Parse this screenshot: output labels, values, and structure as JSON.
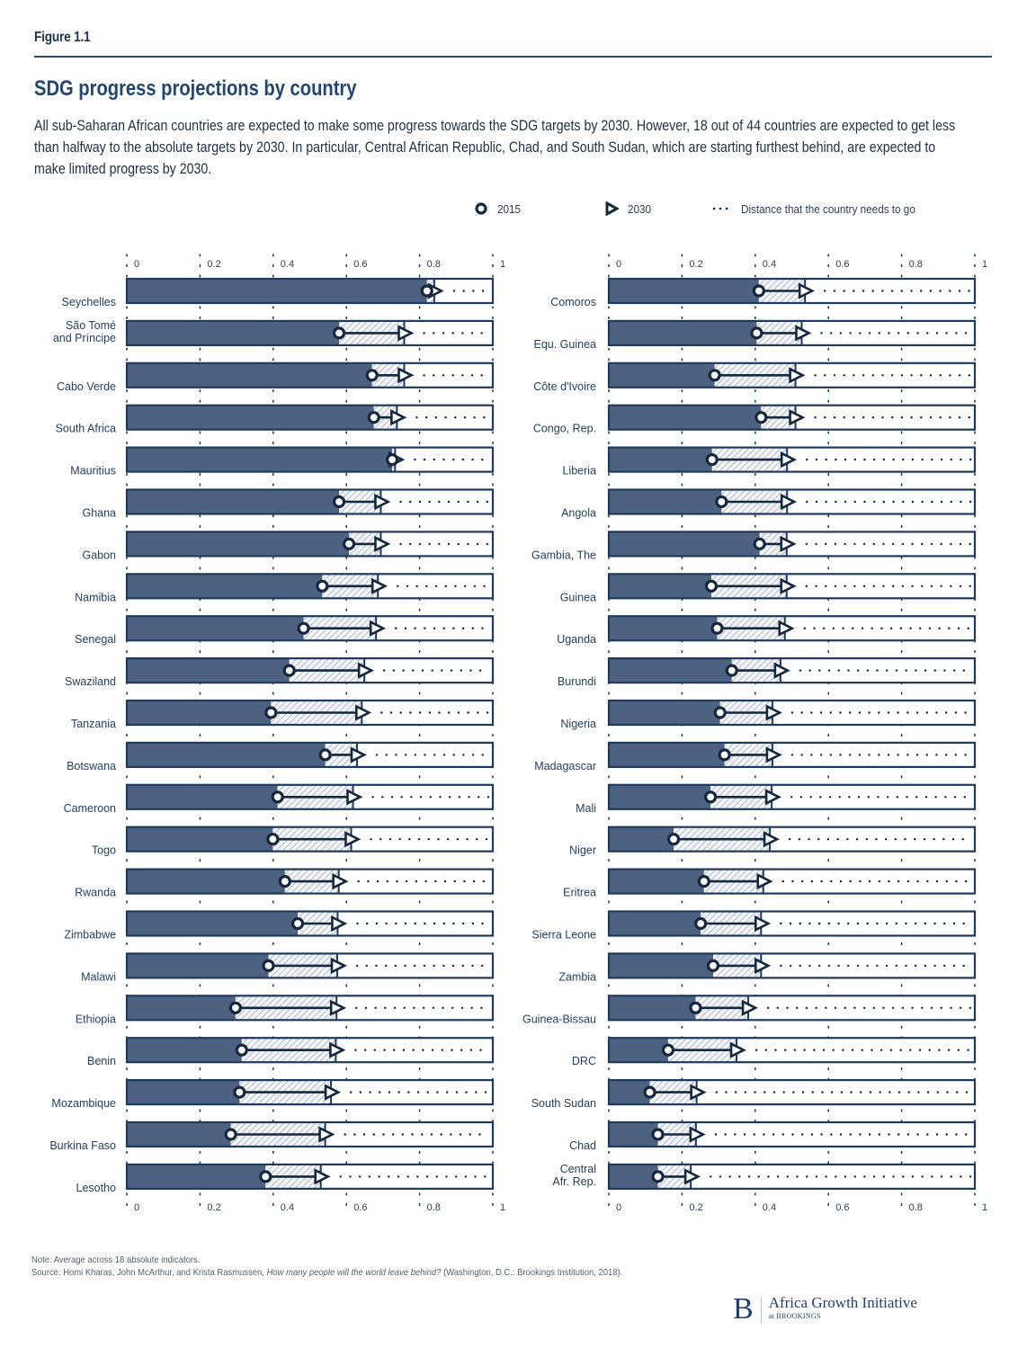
{
  "figure_label": "Figure 1.1",
  "title": "SDG progress projections by country",
  "subtitle": "All sub-Saharan African countries are expected to make some progress towards the SDG targets by 2030. However, 18 out of 44 countries are expected to get less than halfway to the absolute targets by 2030. In particular, Central African Republic, Chad, and South Sudan, which are starting furthest behind, are expected to make limited progress by 2030.",
  "legend": {
    "item_2015": "2015",
    "item_2030": "2030",
    "item_distance": "Distance that the country needs to go"
  },
  "colors": {
    "bar_fill": "#4d6180",
    "bar_border": "#1f3a5c",
    "marker": "#14283f",
    "hatch": "#9aa6b6",
    "text": "#24405f"
  },
  "chart_data": [
    {
      "type": "bar",
      "subtype": "progress-dumbbell",
      "panel": "left",
      "xlim": [
        0,
        1
      ],
      "xticks": [
        0,
        0.2,
        0.4,
        0.6,
        0.8,
        1
      ],
      "xtick_labels": [
        "0",
        "0.2",
        "0.4",
        "0.6",
        "0.8",
        "1"
      ],
      "series": [
        {
          "name": "2015"
        },
        {
          "name": "2030"
        }
      ],
      "categories": [
        "Seychelles",
        "São Tomé\nand Príncipe",
        "Cabo Verde",
        "South Africa",
        "Mauritius",
        "Ghana",
        "Gabon",
        "Namibia",
        "Senegal",
        "Swaziland",
        "Tanzania",
        "Botswana",
        "Cameroon",
        "Togo",
        "Rwanda",
        "Zimbabwe",
        "Malawi",
        "Ethiopia",
        "Benin",
        "Mozambique",
        "Burkina Faso",
        "Lesotho"
      ],
      "values_2015": [
        0.82,
        0.58,
        0.67,
        0.675,
        0.725,
        0.58,
        0.607,
        0.534,
        0.483,
        0.444,
        0.394,
        0.542,
        0.412,
        0.399,
        0.432,
        0.467,
        0.387,
        0.297,
        0.314,
        0.308,
        0.284,
        0.379
      ],
      "values_2030": [
        0.84,
        0.758,
        0.758,
        0.738,
        0.733,
        0.694,
        0.694,
        0.686,
        0.681,
        0.649,
        0.642,
        0.629,
        0.618,
        0.613,
        0.579,
        0.576,
        0.575,
        0.573,
        0.571,
        0.558,
        0.542,
        0.53
      ],
      "target": 1
    },
    {
      "type": "bar",
      "subtype": "progress-dumbbell",
      "panel": "right",
      "xlim": [
        0,
        1
      ],
      "xticks": [
        0,
        0.2,
        0.4,
        0.6,
        0.8,
        1
      ],
      "xtick_labels": [
        "0",
        "0.2",
        "0.4",
        "0.6",
        "0.8",
        "1"
      ],
      "series": [
        {
          "name": "2015"
        },
        {
          "name": "2030"
        }
      ],
      "categories": [
        "Comoros",
        "Equ. Guinea",
        "Côte d'Ivoire",
        "Congo, Rep.",
        "Liberia",
        "Angola",
        "Gambia, The",
        "Guinea",
        "Uganda",
        "Burundi",
        "Nigeria",
        "Madagascar",
        "Mali",
        "Niger",
        "Eritrea",
        "Sierra Leone",
        "Zambia",
        "Guinea-Bissau",
        "DRC",
        "South Sudan",
        "Chad",
        "Central\nAfr. Rep."
      ],
      "values_2015": [
        0.41,
        0.404,
        0.289,
        0.416,
        0.282,
        0.308,
        0.412,
        0.28,
        0.296,
        0.336,
        0.304,
        0.316,
        0.278,
        0.177,
        0.26,
        0.251,
        0.285,
        0.237,
        0.162,
        0.112,
        0.134,
        0.134
      ],
      "values_2030": [
        0.536,
        0.527,
        0.51,
        0.51,
        0.487,
        0.487,
        0.486,
        0.486,
        0.481,
        0.469,
        0.447,
        0.447,
        0.445,
        0.44,
        0.422,
        0.416,
        0.416,
        0.381,
        0.349,
        0.24,
        0.238,
        0.224
      ],
      "target": 1
    }
  ],
  "footer": {
    "note": "Note: Average across 18 absolute indicators.",
    "source_prefix": "Source: Homi Kharas, John McArthur, and Krista Rasmussen, ",
    "source_title": "How many people will the world leave behind?",
    "source_suffix": "  (Washington, D.C.: Brookings Institution, 2018).",
    "logo_letter": "B",
    "logo_name": "Africa Growth Initiative",
    "logo_sub": "at BROOKINGS"
  }
}
